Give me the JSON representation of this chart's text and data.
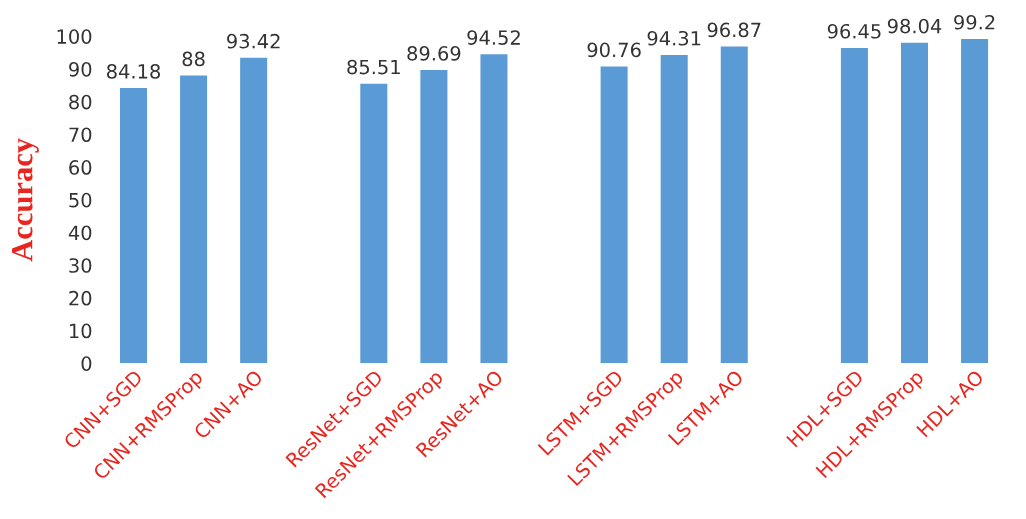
{
  "chart_data": {
    "type": "bar",
    "ylabel": "Accuracy",
    "categories": [
      "CNN+SGD",
      "CNN+RMSProp",
      "CNN+AO",
      null,
      "ResNet+SGD",
      "ResNet+RMSProp",
      "ResNet+AO",
      null,
      "LSTM+SGD",
      "LSTM+RMSProp",
      "LSTM+AO",
      null,
      "HDL+SGD",
      "HDL+RMSProp",
      "HDL+AO"
    ],
    "values": [
      84.18,
      88,
      93.42,
      null,
      85.51,
      89.69,
      94.52,
      null,
      90.76,
      94.31,
      96.87,
      null,
      96.45,
      98.04,
      99.2
    ],
    "color": "#5b9bd5",
    "ylim": [
      0,
      100
    ],
    "yticks": [
      0,
      10,
      20,
      30,
      40,
      50,
      60,
      70,
      80,
      90,
      100
    ],
    "grid": false,
    "data_labels": true
  }
}
